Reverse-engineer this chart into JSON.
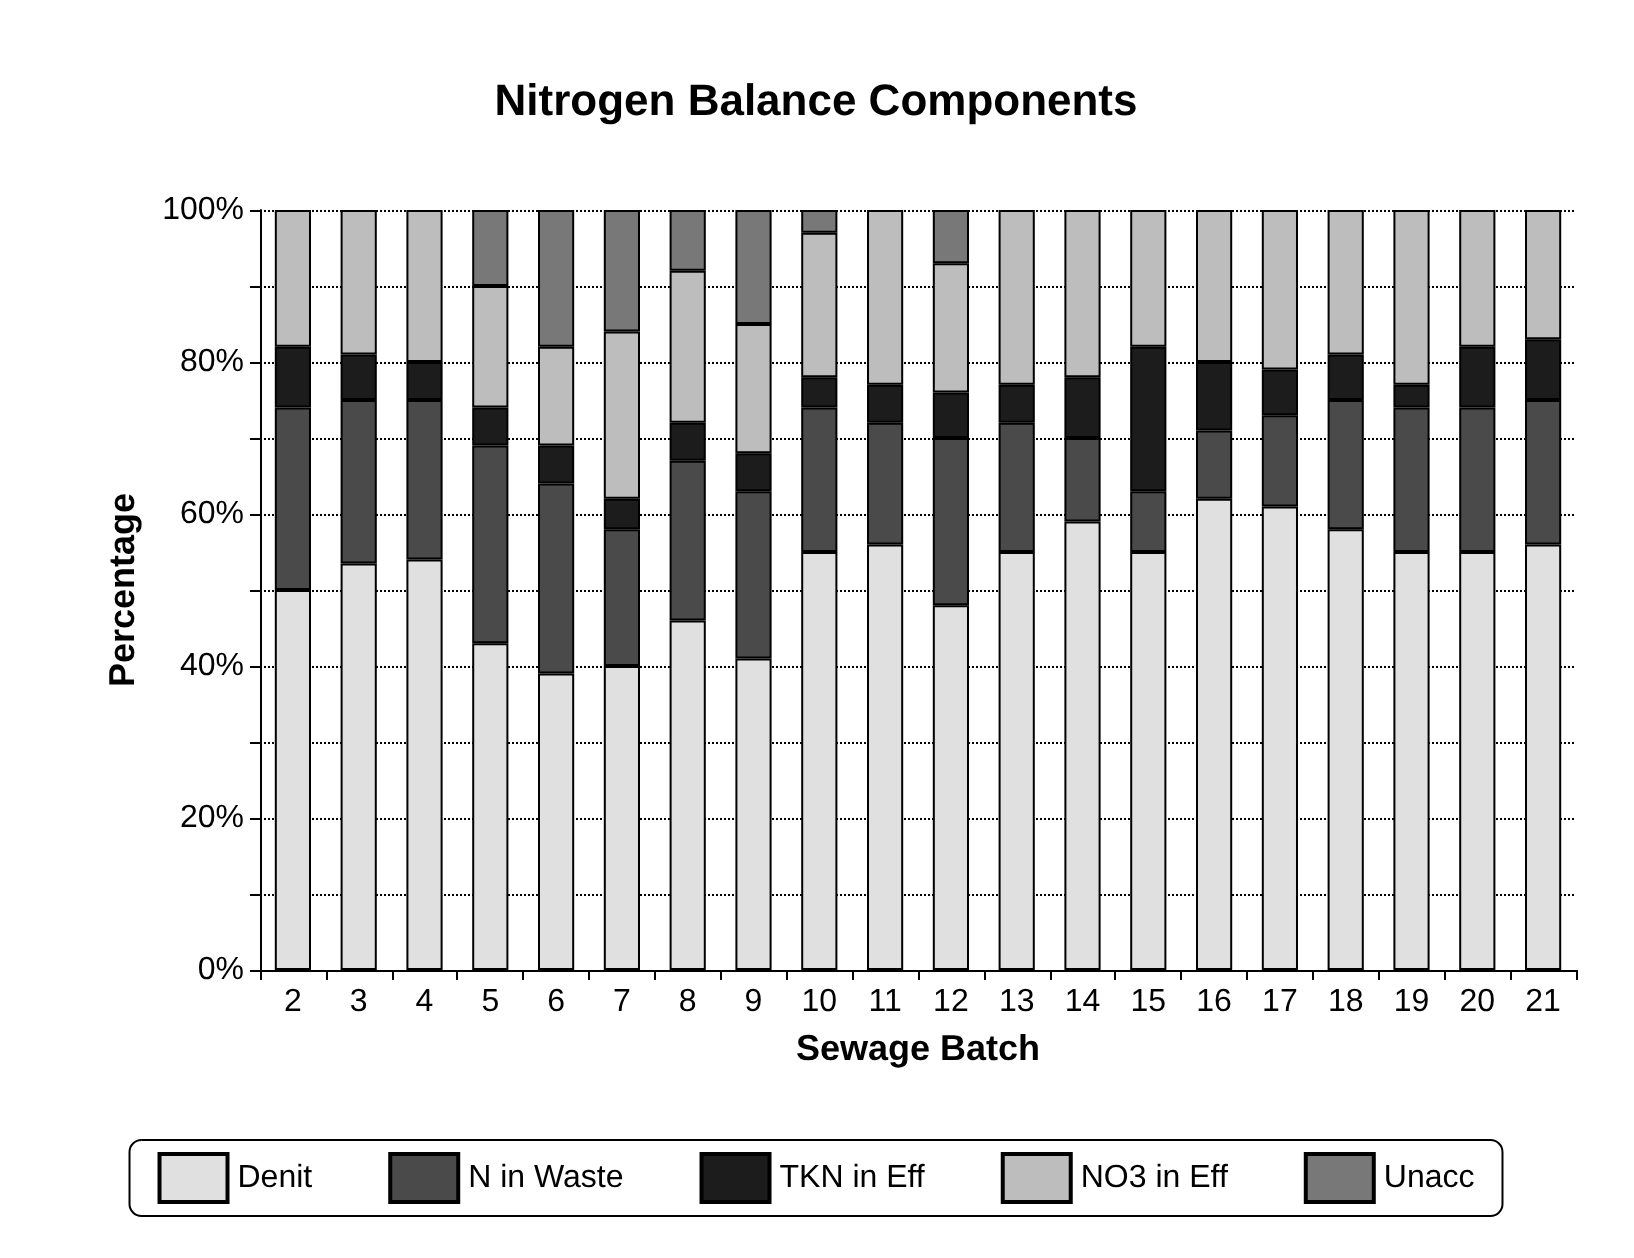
{
  "chart_data": {
    "type": "bar",
    "title": "Nitrogen Balance Components",
    "xlabel": "Sewage Batch",
    "ylabel": "Percentage",
    "categories": [
      "2",
      "3",
      "4",
      "5",
      "6",
      "7",
      "8",
      "9",
      "10",
      "11",
      "12",
      "13",
      "14",
      "15",
      "16",
      "17",
      "18",
      "19",
      "20",
      "21"
    ],
    "stacked": true,
    "ylim": [
      0,
      100
    ],
    "yticks": [
      {
        "value": 0,
        "label": "0%"
      },
      {
        "value": 10,
        "label": null
      },
      {
        "value": 20,
        "label": "20%"
      },
      {
        "value": 30,
        "label": null
      },
      {
        "value": 40,
        "label": "40%"
      },
      {
        "value": 50,
        "label": null
      },
      {
        "value": 60,
        "label": "60%"
      },
      {
        "value": 70,
        "label": null
      },
      {
        "value": 80,
        "label": "80%"
      },
      {
        "value": 90,
        "label": null
      },
      {
        "value": 100,
        "label": "100%"
      }
    ],
    "grid": "y",
    "legend": "bottom",
    "series": [
      {
        "name": "Denit",
        "color": "#e0e0e0",
        "values": [
          50,
          53.5,
          54,
          43,
          39,
          40,
          46,
          41,
          55,
          56,
          48,
          55,
          59,
          55,
          62,
          61,
          58,
          55,
          55,
          56
        ]
      },
      {
        "name": "N in Waste",
        "color": "#4a4a4a",
        "values": [
          24,
          21.5,
          21,
          26,
          25,
          18,
          21,
          22,
          19,
          16,
          22,
          17,
          11,
          8,
          9,
          12,
          17,
          19,
          19,
          19
        ]
      },
      {
        "name": "TKN in Eff",
        "color": "#1c1c1c",
        "values": [
          8,
          6,
          5,
          5,
          5,
          4,
          5,
          5,
          4,
          5,
          6,
          5,
          8,
          19,
          9,
          6,
          6,
          3,
          8,
          8
        ]
      },
      {
        "name": "NO3 in Eff",
        "color": "#bdbdbd",
        "values": [
          18,
          19,
          20,
          16,
          13,
          22,
          20,
          17,
          19,
          23,
          17,
          23,
          22,
          18,
          20,
          21,
          19,
          23,
          18,
          17
        ]
      },
      {
        "name": "Unacc",
        "color": "#787878",
        "values": [
          0,
          0,
          0,
          10,
          18,
          16,
          8,
          15,
          3,
          0,
          7,
          0,
          0,
          0,
          0,
          0,
          0,
          0,
          0,
          0
        ]
      }
    ]
  }
}
